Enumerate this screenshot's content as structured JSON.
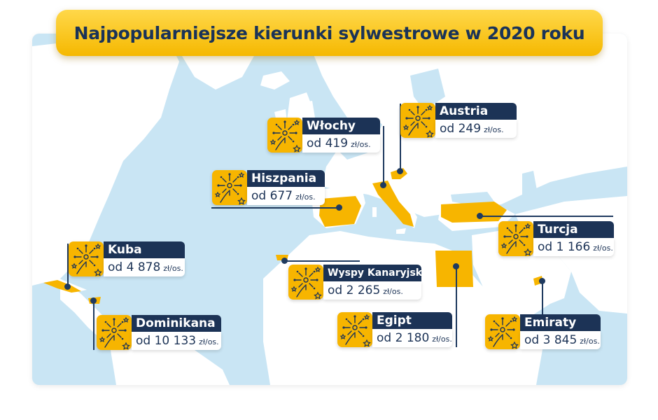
{
  "title": "Najpopularniejsze kierunki sylwestrowe w 2020 roku",
  "colors": {
    "sea": "#c9e5f4",
    "land": "#ffffff",
    "highlight": "#f7b500",
    "label_dark": "#1c3356"
  },
  "destinations": [
    {
      "name": "Austria",
      "prefix": "od",
      "price": "249",
      "unit": "zł/os."
    },
    {
      "name": "Włochy",
      "prefix": "od",
      "price": "419",
      "unit": "zł/os."
    },
    {
      "name": "Hiszpania",
      "prefix": "od",
      "price": "677",
      "unit": "zł/os."
    },
    {
      "name": "Turcja",
      "prefix": "od",
      "price": "1 166",
      "unit": "zł/os."
    },
    {
      "name": "Kuba",
      "prefix": "od",
      "price": "4 878",
      "unit": "zł/os."
    },
    {
      "name": "Wyspy Kanaryjskie",
      "prefix": "od",
      "price": "2 265",
      "unit": "zł/os."
    },
    {
      "name": "Egipt",
      "prefix": "od",
      "price": "2 180",
      "unit": "zł/os."
    },
    {
      "name": "Emiraty",
      "prefix": "od",
      "price": "3 845",
      "unit": "zł/os."
    },
    {
      "name": "Dominikana",
      "prefix": "od",
      "price": "10 133",
      "unit": "zł/os."
    }
  ],
  "icon": "fireworks-icon"
}
